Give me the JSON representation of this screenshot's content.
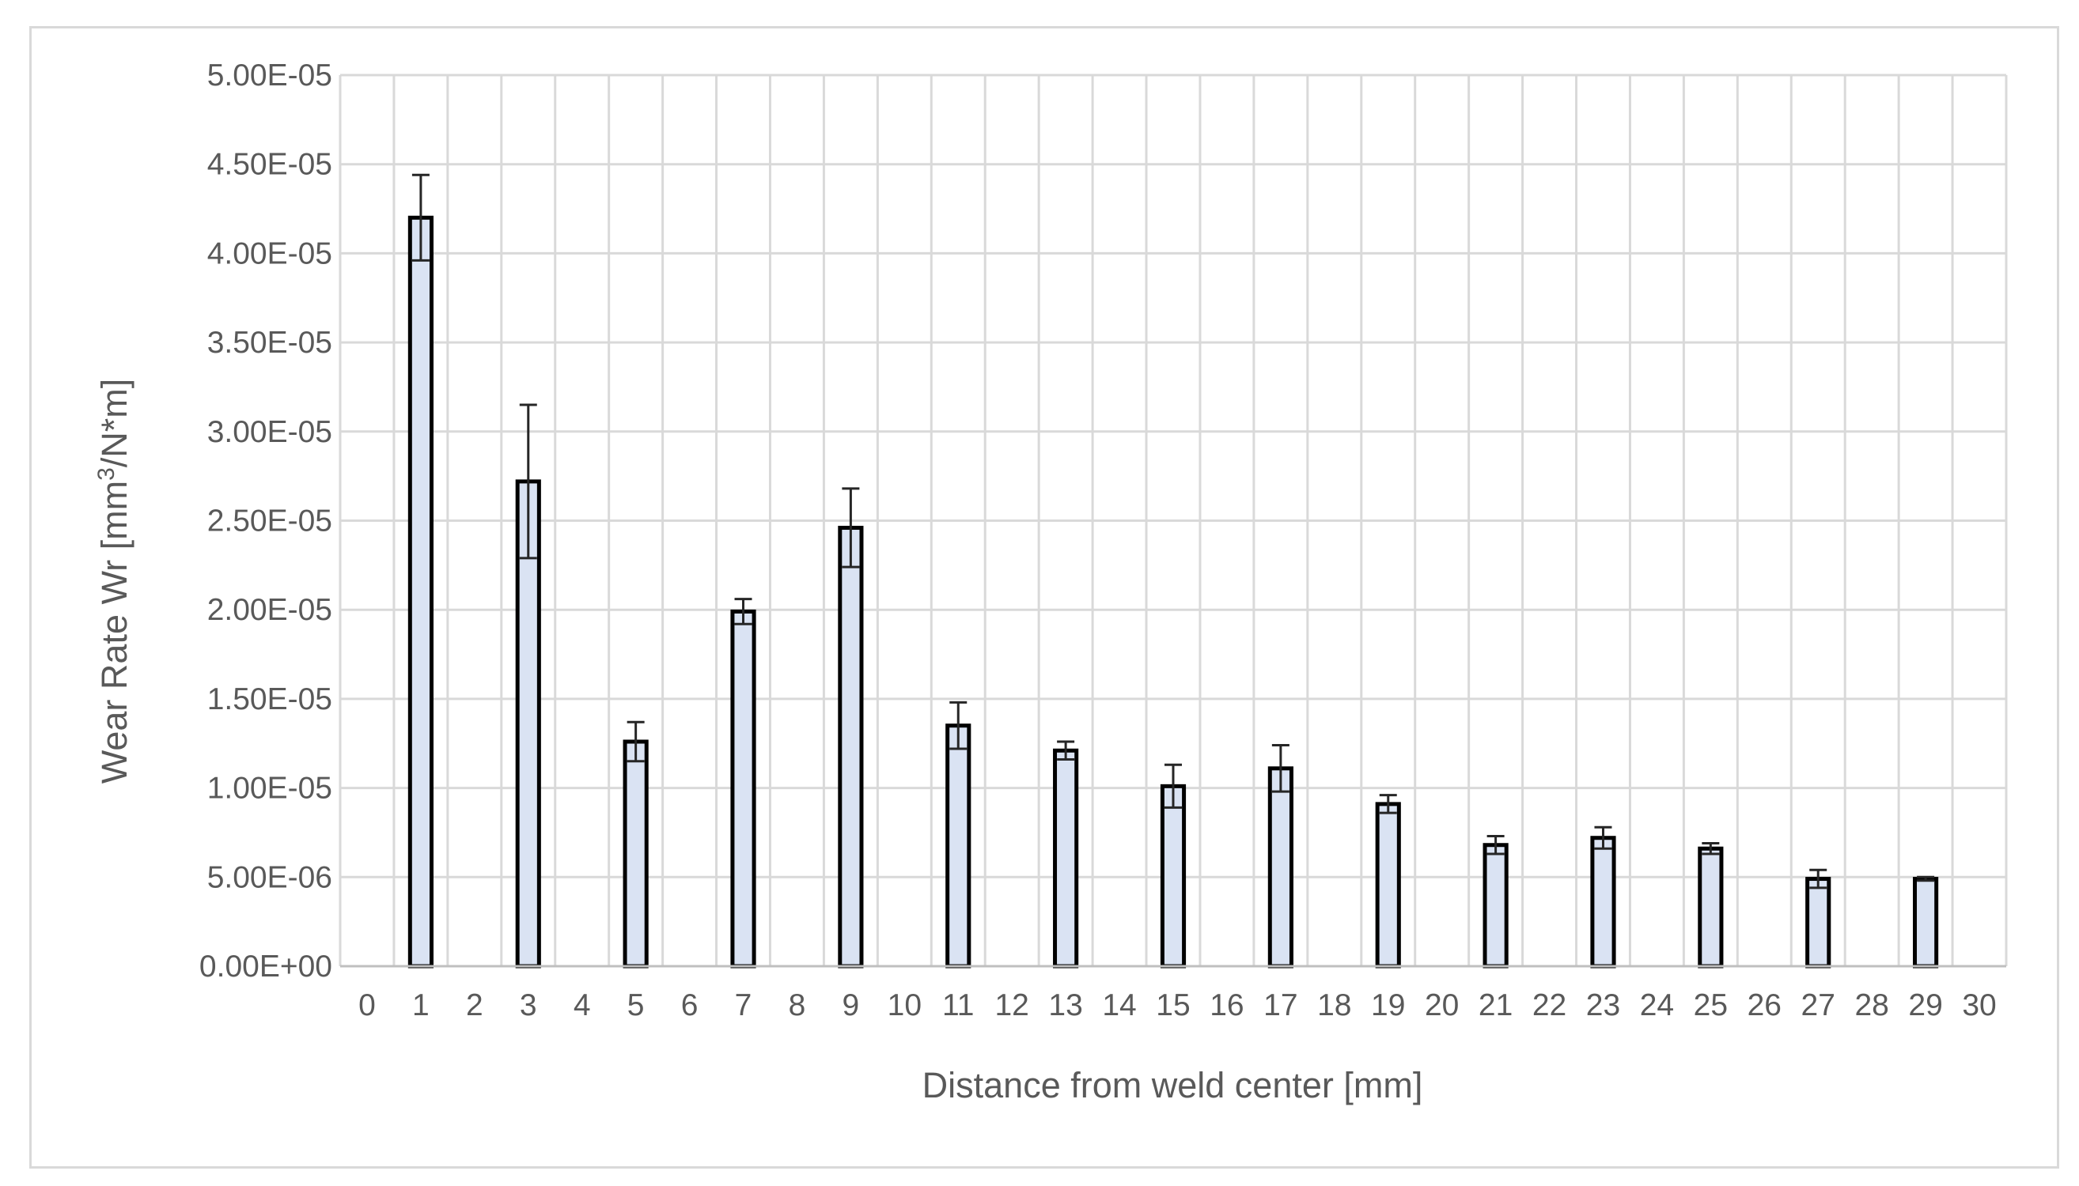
{
  "chart_data": {
    "type": "bar",
    "title": "",
    "xlabel": "Distance from weld center [mm]",
    "ylabel_main": "Wear Rate Wr [mm",
    "ylabel_sup": "3",
    "ylabel_tail": "/N*m]",
    "x_ticks": [
      "0",
      "1",
      "2",
      "3",
      "4",
      "5",
      "6",
      "7",
      "8",
      "9",
      "10",
      "11",
      "12",
      "13",
      "14",
      "15",
      "16",
      "17",
      "18",
      "19",
      "20",
      "21",
      "22",
      "23",
      "24",
      "25",
      "26",
      "27",
      "28",
      "29",
      "30"
    ],
    "y_ticks": [
      "0.00E+00",
      "5.00E-06",
      "1.00E-05",
      "1.50E-05",
      "2.00E-05",
      "2.50E-05",
      "3.00E-05",
      "3.50E-05",
      "4.00E-05",
      "4.50E-05",
      "5.00E-05"
    ],
    "xlim": [
      -0.5,
      30.5
    ],
    "ylim": [
      0,
      5e-05
    ],
    "grid": true,
    "bar_color": "#dae3f3",
    "bar_edge_color": "#000000",
    "series": [
      {
        "x": [
          1,
          3,
          5,
          7,
          9,
          11,
          13,
          15,
          17,
          19,
          21,
          23,
          25,
          27,
          29
        ],
        "values": [
          4.2e-05,
          2.72e-05,
          1.26e-05,
          1.99e-05,
          2.46e-05,
          1.35e-05,
          1.21e-05,
          1.01e-05,
          1.11e-05,
          9.1e-06,
          6.8e-06,
          7.2e-06,
          6.6e-06,
          4.9e-06,
          4.9e-06
        ],
        "error": [
          2.4e-06,
          4.3e-06,
          1.1e-06,
          7e-07,
          2.2e-06,
          1.3e-06,
          5e-07,
          1.2e-06,
          1.3e-06,
          5e-07,
          5e-07,
          6e-07,
          3e-07,
          5e-07,
          1e-07
        ]
      }
    ]
  }
}
